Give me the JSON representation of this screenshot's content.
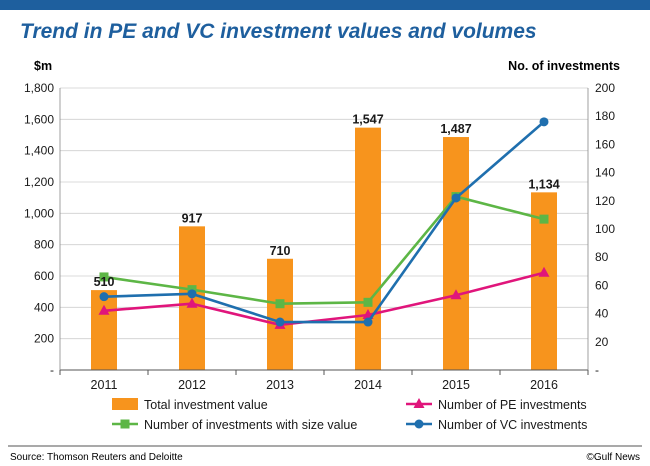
{
  "header": {
    "title": "Trend in PE and VC investment values and volumes",
    "accent_color": "#1e5f9e",
    "title_color": "#1e5f9e"
  },
  "footer": {
    "source": "Source: Thomson Reuters and Deloitte",
    "credit": "©Gulf News"
  },
  "chart_data": {
    "type": "bar",
    "categories": [
      "2011",
      "2012",
      "2013",
      "2014",
      "2015",
      "2016"
    ],
    "ylabel": "$m",
    "y2label": "No. of investments",
    "ylim": [
      0,
      1800
    ],
    "y2lim": [
      0,
      200
    ],
    "y_ticks": [
      "-",
      "200",
      "400",
      "600",
      "800",
      "1,000",
      "1,200",
      "1,400",
      "1,600",
      "1,800"
    ],
    "y2_ticks": [
      "-",
      "20",
      "40",
      "60",
      "80",
      "100",
      "120",
      "140",
      "160",
      "180",
      "200"
    ],
    "grid": true,
    "legend_position": "bottom",
    "series": [
      {
        "name": "Total investment value",
        "type": "bar",
        "axis": "left",
        "color": "#f7941d",
        "values": [
          510,
          917,
          710,
          1547,
          1487,
          1134
        ],
        "labels": [
          "510",
          "917",
          "710",
          "1,547",
          "1,487",
          "1,134"
        ]
      },
      {
        "name": "Number of investments with size value",
        "type": "line",
        "axis": "right",
        "color": "#5db646",
        "marker": "square",
        "values": [
          66,
          57,
          47,
          48,
          123,
          107
        ]
      },
      {
        "name": "Number of PE investments",
        "type": "line",
        "axis": "right",
        "color": "#e0157b",
        "marker": "triangle",
        "values": [
          42,
          47,
          32,
          39,
          53,
          69
        ]
      },
      {
        "name": "Number of VC investments",
        "type": "line",
        "axis": "right",
        "color": "#1f6fae",
        "marker": "circle",
        "values": [
          52,
          54,
          34,
          34,
          122,
          176
        ]
      }
    ]
  }
}
